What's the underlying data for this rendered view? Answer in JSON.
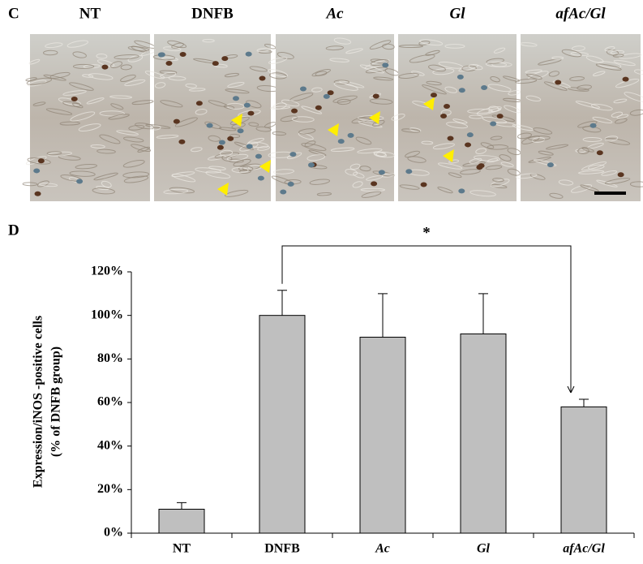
{
  "panel_c": {
    "label": "C",
    "images": [
      "NT",
      "DNFB",
      "Ac",
      "Gl",
      "afAc/Gl"
    ]
  },
  "chart_data": {
    "type": "bar",
    "panel_label": "D",
    "ylabel": [
      "Expression/iNOS -positive  cells",
      "(% of DNFB group)"
    ],
    "categories": [
      "NT",
      "DNFB",
      "Ac",
      "Gl",
      "afAc/Gl"
    ],
    "values": [
      11,
      100,
      90,
      91.5,
      58
    ],
    "errors": [
      3,
      11.5,
      20,
      18.5,
      3.5
    ],
    "color": "#bfbfbf",
    "ylim": [
      0,
      120
    ],
    "yticks": [
      {
        "value": 0,
        "label": "0%"
      },
      {
        "value": 20,
        "label": "20%"
      },
      {
        "value": 40,
        "label": "40%"
      },
      {
        "value": 60,
        "label": "60%"
      },
      {
        "value": 80,
        "label": "80%"
      },
      {
        "value": 100,
        "label": "100%"
      },
      {
        "value": 120,
        "label": "120%"
      }
    ],
    "grid": false,
    "annotation": "*"
  }
}
